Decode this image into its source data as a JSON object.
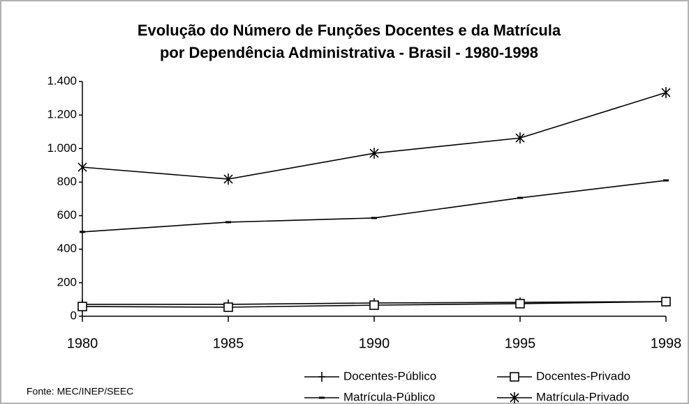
{
  "chart_data": {
    "type": "line",
    "title": [
      "Evolução do Número de Funções Docentes e da Matrícula",
      "por Dependência Administrativa - Brasil - 1980-1998"
    ],
    "source": "Fonte: MEC/INEP/SEEC",
    "categories": [
      "1980",
      "1985",
      "1990",
      "1995",
      "1998"
    ],
    "ylim": [
      0,
      1400
    ],
    "yticks": [
      0,
      200,
      400,
      600,
      800,
      {
        "value": 1000,
        "label": "1.000"
      },
      {
        "value": 1200,
        "label": "1.200"
      },
      {
        "value": 1400,
        "label": "1.400"
      }
    ],
    "grid": false,
    "legend": "bottom",
    "series": [
      {
        "name": "Docentes-Público",
        "color": "#000000",
        "marker": "plus",
        "values": [
          71,
          71,
          79,
          83,
          87
        ]
      },
      {
        "name": "Docentes-Privado",
        "color": "#000000",
        "marker": "square",
        "values": [
          58,
          54,
          66,
          75,
          87
        ]
      },
      {
        "name": "Matrícula-Público",
        "color": "#000000",
        "marker": "dash",
        "values": [
          503,
          561,
          586,
          706,
          810
        ]
      },
      {
        "name": "Matrícula-Privado",
        "color": "#000000",
        "marker": "asterisk",
        "values": [
          889,
          818,
          972,
          1063,
          1334
        ]
      }
    ]
  }
}
